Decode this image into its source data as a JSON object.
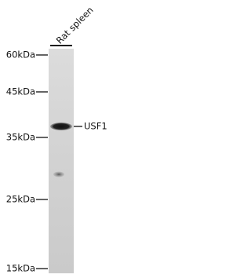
{
  "lane_label": "Rat spleen",
  "markers": [
    "60kDa",
    "45kDa",
    "35kDa",
    "25kDa",
    "15kDa"
  ],
  "band_label": "USF1"
}
